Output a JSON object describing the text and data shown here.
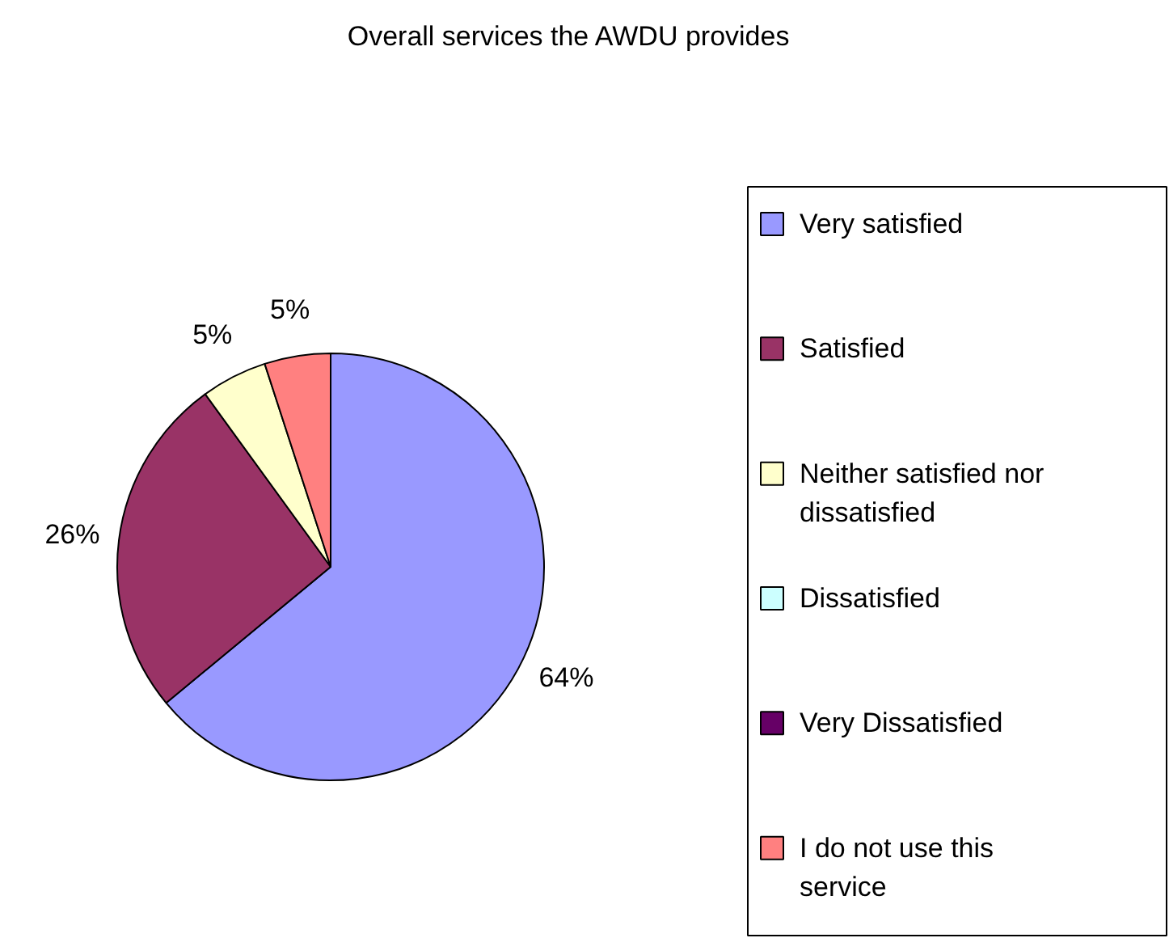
{
  "chart_data": {
    "type": "pie",
    "title": "Overall services the AWDU provides",
    "categories": [
      "Very satisfied",
      "Satisfied",
      "Neither satisfied nor dissatisfied",
      "Dissatisfied",
      "Very Dissatisfied",
      "I do not use this service"
    ],
    "values": [
      64,
      26,
      5,
      0,
      0,
      5
    ],
    "value_labels": [
      "64%",
      "26%",
      "5%",
      null,
      null,
      "5%"
    ],
    "colors": [
      "#9999ff",
      "#993366",
      "#ffffcc",
      "#ccffff",
      "#660066",
      "#ff8080"
    ],
    "legend": "right"
  }
}
